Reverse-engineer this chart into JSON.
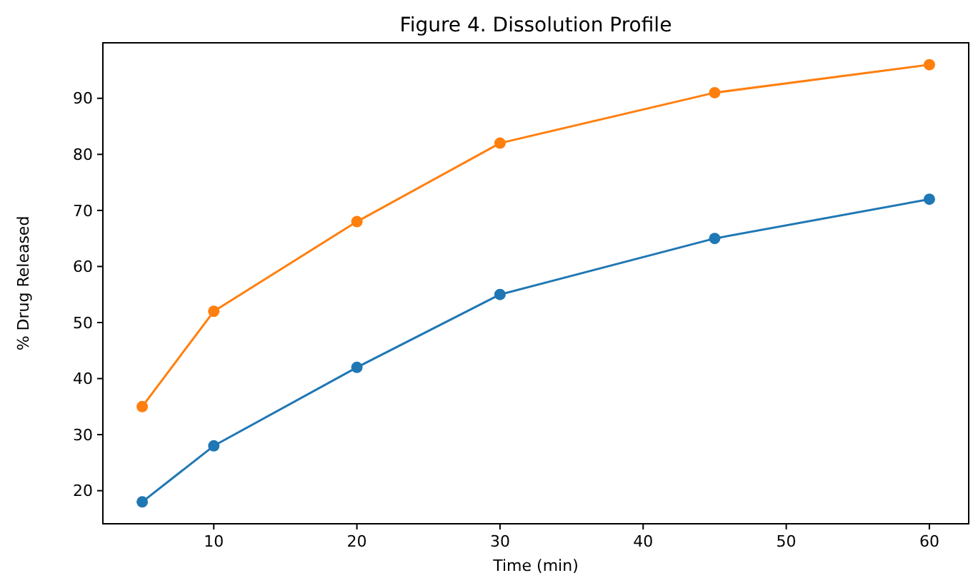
{
  "chart_data": {
    "type": "line",
    "title": "Figure 4. Dissolution Profile",
    "xlabel": "Time (min)",
    "ylabel": "% Drug Released",
    "x": [
      5,
      10,
      20,
      30,
      45,
      60
    ],
    "series": [
      {
        "color": "#1f77b4",
        "values": [
          18,
          28,
          42,
          55,
          65,
          72
        ]
      },
      {
        "color": "#ff7f0e",
        "values": [
          35,
          52,
          68,
          82,
          91,
          96
        ]
      }
    ],
    "xlim": [
      2.25,
      62.75
    ],
    "xticks": [
      10,
      20,
      30,
      40,
      50,
      60
    ],
    "ylim": [
      14.1,
      99.9
    ],
    "yticks": [
      20,
      30,
      40,
      50,
      60,
      70,
      80,
      90
    ],
    "marker": "circle",
    "line_style": "solid",
    "grid": false
  }
}
